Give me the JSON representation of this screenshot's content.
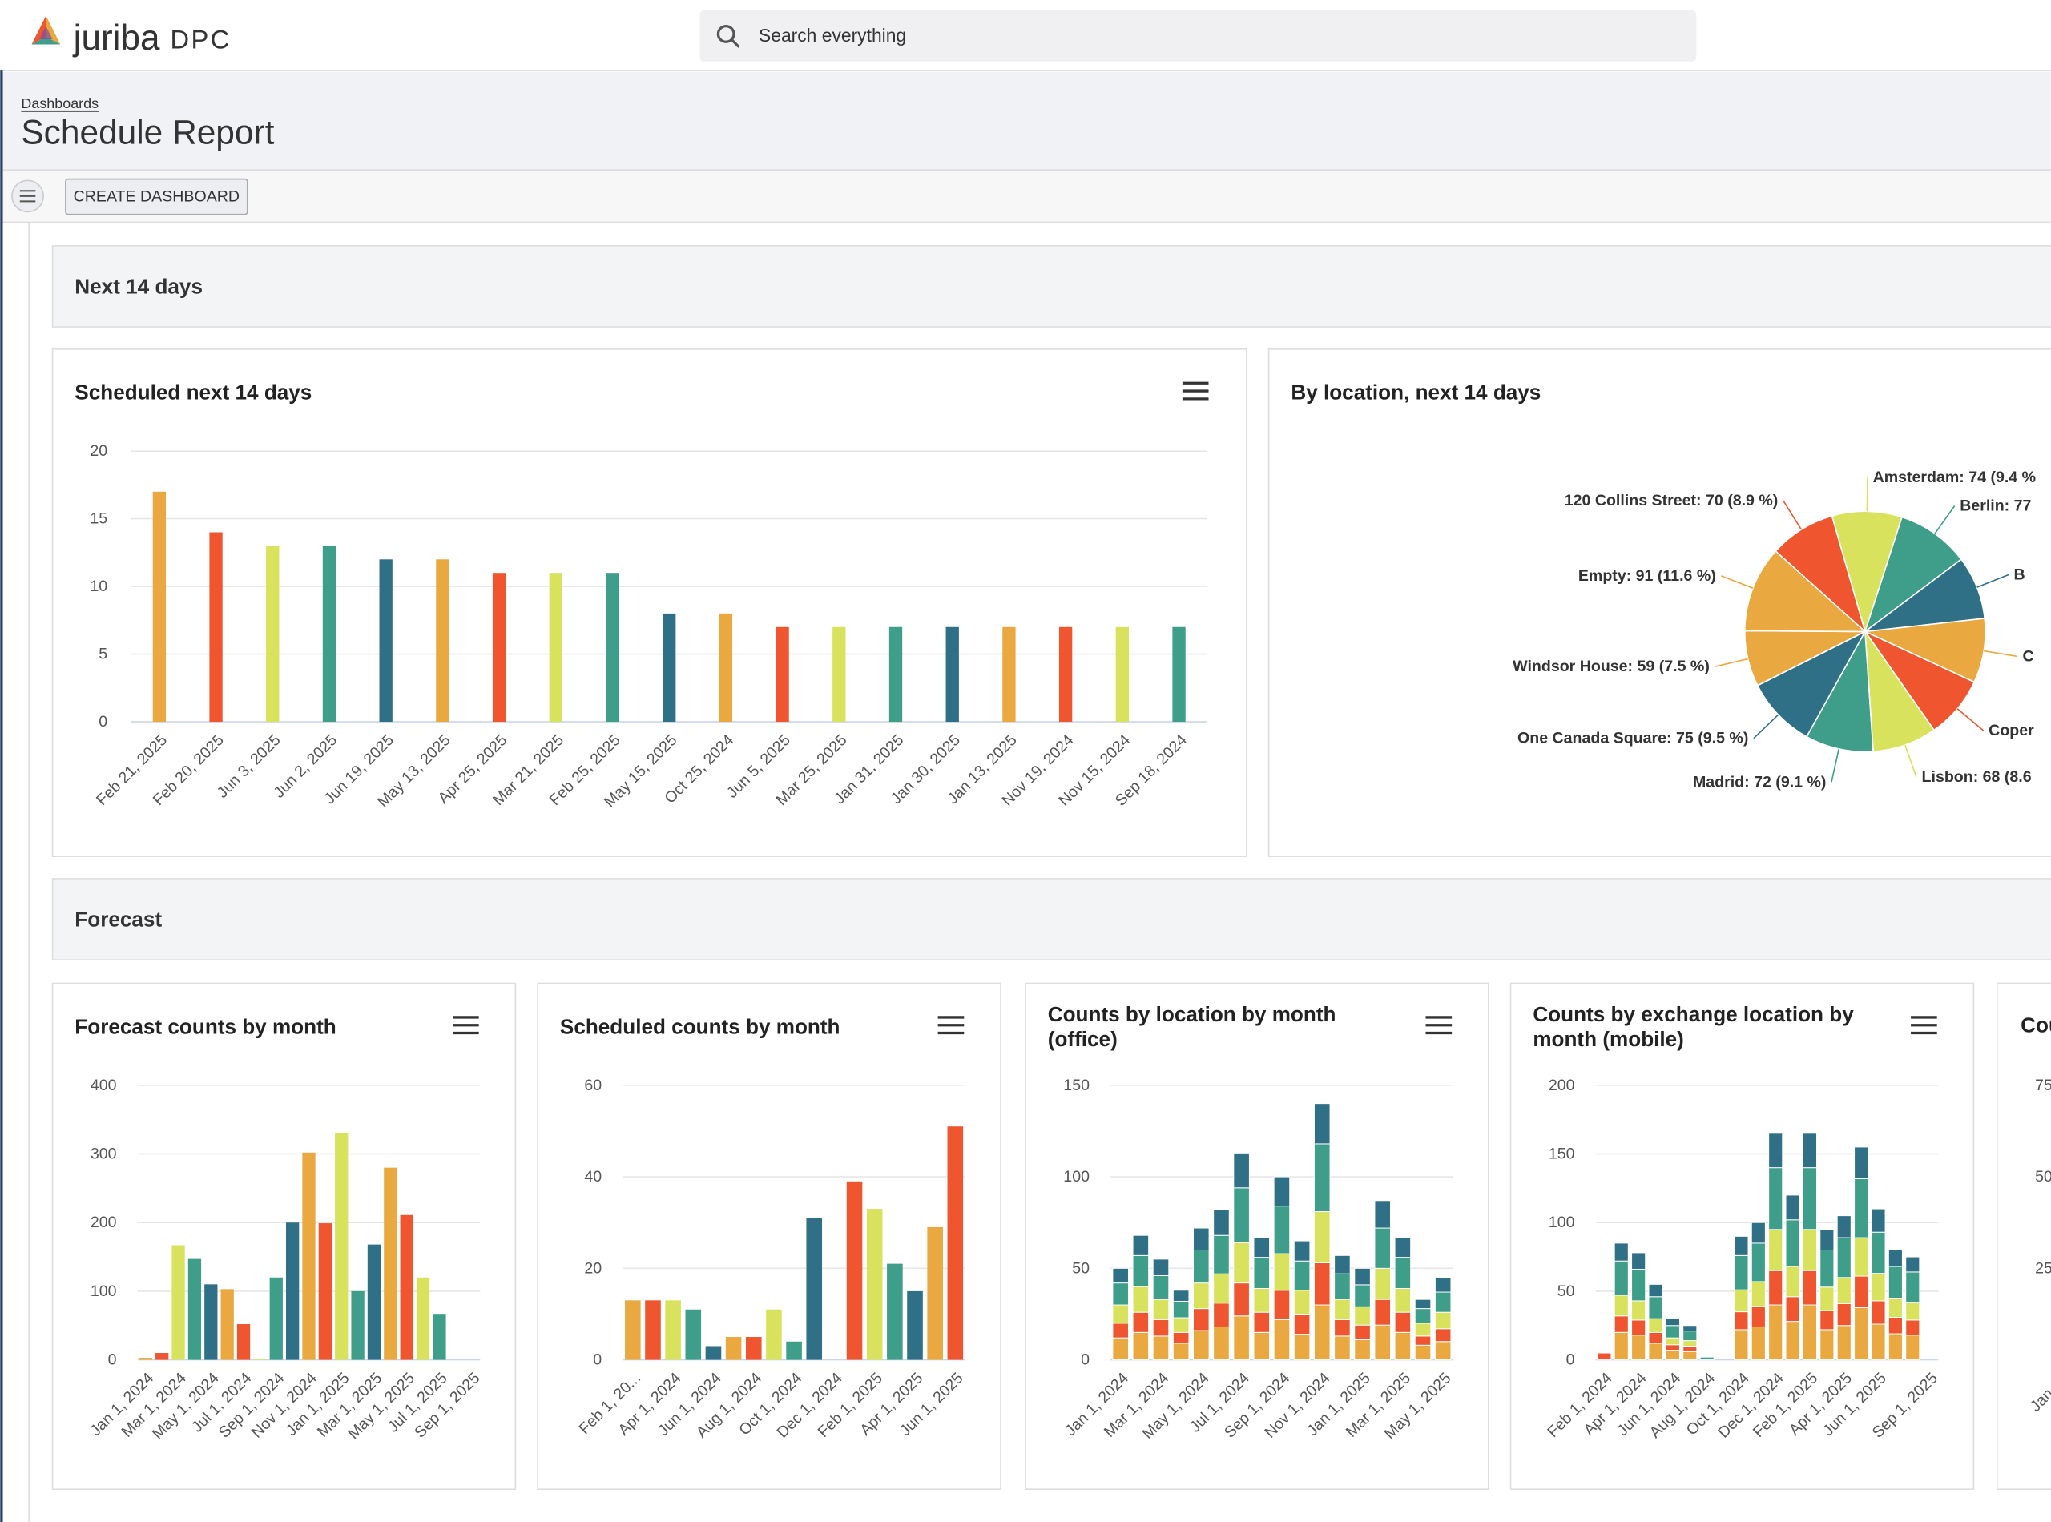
{
  "header": {
    "logo": "juriba",
    "product": "DPC",
    "search_placeholder": "Search everything"
  },
  "breadcrumb": "Dashboards",
  "title": "Schedule Report",
  "toolbar": {
    "button": "CREATE DASHBOARD"
  },
  "sections": [
    "Next 14 days",
    "Forecast"
  ],
  "partial_card": {
    "title": "Cou",
    "tick_labels": [
      "75",
      "50",
      "25"
    ],
    "x_label": "Jan"
  },
  "chart_data": [
    {
      "type": "bar",
      "title": "Scheduled next 14 days",
      "categories": [
        "Feb 21, 2025",
        "Feb 20, 2025",
        "Jun 3, 2025",
        "Jun 2, 2025",
        "Jun 19, 2025",
        "May 13, 2025",
        "Apr 25, 2025",
        "Mar 21, 2025",
        "Feb 25, 2025",
        "May 15, 2025",
        "Oct 25, 2024",
        "Jun 5, 2025",
        "Mar 25, 2025",
        "Jan 31, 2025",
        "Jan 30, 2025",
        "Jan 13, 2025",
        "Nov 19, 2024",
        "Nov 15, 2024",
        "Sep 18, 2024"
      ],
      "values": [
        17,
        14,
        13,
        13,
        12,
        12,
        11,
        11,
        11,
        8,
        8,
        7,
        7,
        7,
        7,
        7,
        7,
        7,
        7
      ],
      "colors": [
        "#eaa940",
        "#ef5630",
        "#d8e25c",
        "#3e9e89",
        "#2f7086"
      ],
      "ylim": [
        0,
        20
      ],
      "yticks": [
        0,
        5,
        10,
        15,
        20
      ],
      "grid": true
    },
    {
      "type": "pie",
      "title": "By location, next 14 days",
      "values": [
        74,
        77,
        67,
        68,
        66,
        68,
        72,
        75,
        59,
        91,
        70
      ],
      "value_labels": [
        "Amsterdam: 74 (9.4 %",
        "Berlin: 77",
        "B",
        "C",
        "Coper",
        "Lisbon: 68 (8.6",
        "Madrid: 72 (9.1 %)",
        "One Canada Square: 75 (9.5 %)",
        "Windsor House: 59 (7.5 %)",
        "Empty: 91 (11.6 %)",
        "120 Collins Street: 70 (8.9 %)"
      ],
      "colors": [
        "#d8e25c",
        "#3e9e89",
        "#2f7086",
        "#eaa940",
        "#ef5630",
        "#d8e25c",
        "#3e9e89",
        "#2f7086",
        "#eaa940",
        "#eaa940",
        "#ef5630"
      ]
    },
    {
      "type": "bar",
      "title": "Forecast counts by month",
      "categories": [
        "Jan 1, 2024",
        null,
        "Mar 1, 2024",
        null,
        "May 1, 2024",
        null,
        "Jul 1, 2024",
        null,
        "Sep 1, 2024",
        null,
        "Nov 1, 2024",
        null,
        "Jan 1, 2025",
        null,
        "Mar 1, 2025",
        null,
        "May 1, 2025",
        null,
        "Jul 1, 2025",
        null,
        "Sep 1, 2025"
      ],
      "values": [
        3,
        10,
        167,
        147,
        110,
        103,
        52,
        2,
        120,
        200,
        302,
        199,
        330,
        100,
        168,
        280,
        211,
        120,
        67,
        null,
        null
      ],
      "colors": [
        "#eaa940",
        "#ef5630",
        "#d8e25c",
        "#3e9e89",
        "#2f7086"
      ],
      "ylim": [
        0,
        400
      ],
      "yticks": [
        0,
        100,
        200,
        300,
        400
      ],
      "grid": true
    },
    {
      "type": "bar",
      "title": "Scheduled counts by month",
      "categories": [
        "Feb 1, 20...",
        null,
        "Apr 1, 2024",
        null,
        "Jun 1, 2024",
        null,
        "Aug 1, 2024",
        null,
        "Oct 1, 2024",
        null,
        "Dec 1, 2024",
        null,
        "Feb 1, 2025",
        null,
        "Apr 1, 2025",
        null,
        "Jun 1, 2025"
      ],
      "values": [
        13,
        13,
        13,
        11,
        3,
        5,
        5,
        11,
        4,
        31,
        null,
        39,
        33,
        21,
        15,
        29,
        51
      ],
      "colors": [
        "#eaa940",
        "#ef5630",
        "#d8e25c",
        "#3e9e89",
        "#2f7086"
      ],
      "ylim": [
        0,
        60
      ],
      "yticks": [
        0,
        20,
        40,
        60
      ],
      "grid": true
    },
    {
      "type": "stacked_bar",
      "title": "Counts by location by month (office)",
      "categories": [
        "Jan 1, 2024",
        null,
        "Mar 1, 2024",
        null,
        "May 1, 2024",
        null,
        "Jul 1, 2024",
        null,
        "Sep 1, 2024",
        null,
        "Nov 1, 2024",
        null,
        "Jan 1, 2025",
        null,
        "Mar 1, 2025",
        null,
        "May 1, 2025"
      ],
      "series": [
        {
          "color": "#eaa940",
          "values": [
            12,
            15,
            13,
            9,
            16,
            18,
            24,
            15,
            22,
            14,
            30,
            13,
            11,
            19,
            15,
            8,
            10
          ]
        },
        {
          "color": "#ef5630",
          "values": [
            8,
            11,
            9,
            6,
            12,
            13,
            18,
            11,
            16,
            11,
            23,
            9,
            8,
            14,
            11,
            5,
            7
          ]
        },
        {
          "color": "#d8e25c",
          "values": [
            10,
            14,
            11,
            8,
            14,
            16,
            22,
            13,
            20,
            13,
            28,
            11,
            10,
            17,
            13,
            7,
            9
          ]
        },
        {
          "color": "#3e9e89",
          "values": [
            12,
            17,
            13,
            9,
            18,
            21,
            30,
            17,
            26,
            16,
            37,
            14,
            12,
            22,
            17,
            8,
            11
          ]
        },
        {
          "color": "#2f7086",
          "values": [
            8,
            11,
            9,
            6,
            12,
            14,
            19,
            11,
            16,
            11,
            22,
            10,
            9,
            15,
            11,
            5,
            8
          ]
        }
      ],
      "ylim": [
        0,
        150
      ],
      "yticks": [
        0,
        50,
        100,
        150
      ],
      "grid": true
    },
    {
      "type": "stacked_bar",
      "title": "Counts by exchange location by month (mobile)",
      "categories": [
        "Feb 1, 2024",
        null,
        "Apr 1, 2024",
        null,
        "Jun 1, 2024",
        null,
        "Aug 1, 2024",
        null,
        "Oct 1, 2024",
        null,
        "Dec 1, 2024",
        null,
        "Feb 1, 2025",
        null,
        "Apr 1, 2025",
        null,
        "Jun 1, 2025",
        null,
        null,
        "Sep 1, 2025"
      ],
      "series": [
        {
          "color": "#eaa940",
          "values": [
            0,
            20,
            18,
            12,
            7,
            6,
            0,
            0,
            22,
            24,
            40,
            28,
            40,
            22,
            25,
            38,
            26,
            19,
            18,
            0
          ]
        },
        {
          "color": "#ef5630",
          "values": [
            5,
            12,
            11,
            8,
            4,
            4,
            0,
            0,
            13,
            15,
            25,
            18,
            25,
            14,
            16,
            23,
            17,
            12,
            11,
            0
          ]
        },
        {
          "color": "#d8e25c",
          "values": [
            0,
            15,
            14,
            10,
            5,
            4,
            0,
            0,
            16,
            18,
            30,
            22,
            30,
            17,
            19,
            28,
            20,
            14,
            13,
            0
          ]
        },
        {
          "color": "#3e9e89",
          "values": [
            0,
            25,
            23,
            16,
            9,
            7,
            2,
            0,
            25,
            28,
            45,
            34,
            45,
            27,
            29,
            43,
            30,
            23,
            22,
            0
          ]
        },
        {
          "color": "#2f7086",
          "values": [
            0,
            13,
            12,
            9,
            5,
            4,
            0,
            0,
            14,
            15,
            25,
            18,
            25,
            15,
            16,
            23,
            17,
            12,
            11,
            0
          ]
        }
      ],
      "ylim": [
        0,
        200
      ],
      "yticks": [
        0,
        50,
        100,
        150,
        200
      ],
      "grid": true
    }
  ]
}
